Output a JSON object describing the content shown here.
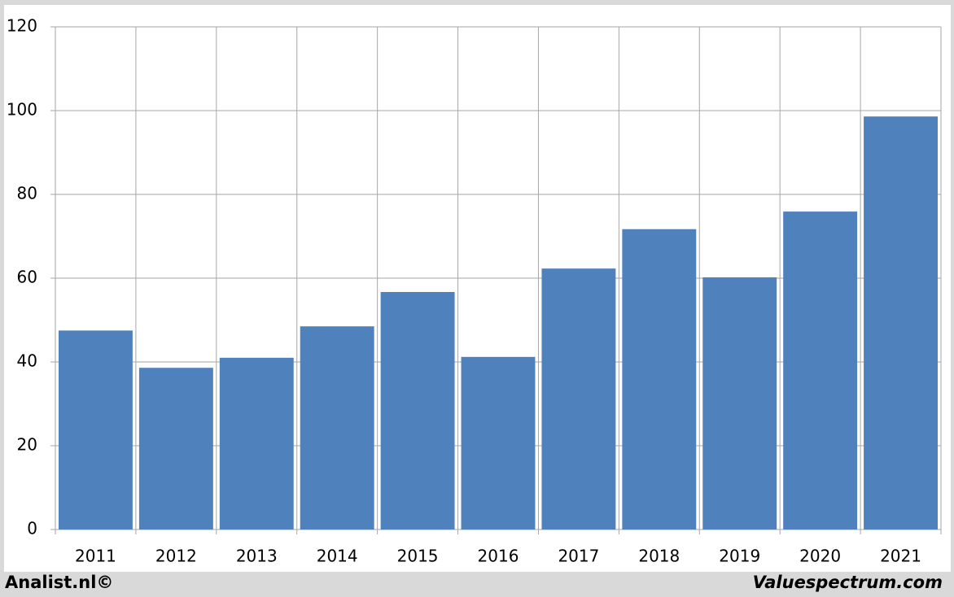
{
  "chart_data": {
    "type": "bar",
    "categories": [
      "2011",
      "2012",
      "2013",
      "2014",
      "2015",
      "2016",
      "2017",
      "2018",
      "2019",
      "2020",
      "2021"
    ],
    "values": [
      47.5,
      38.6,
      41,
      48.5,
      56.7,
      41.2,
      62.3,
      71.7,
      60.2,
      75.9,
      98.6
    ],
    "color": "#4f81bd",
    "ylim": [
      0,
      120
    ],
    "yticks": [
      0,
      20,
      40,
      60,
      80,
      100,
      120
    ],
    "grid": true,
    "credit_left": "Analist.nl©",
    "credit_right": "Valuespectrum.com"
  }
}
